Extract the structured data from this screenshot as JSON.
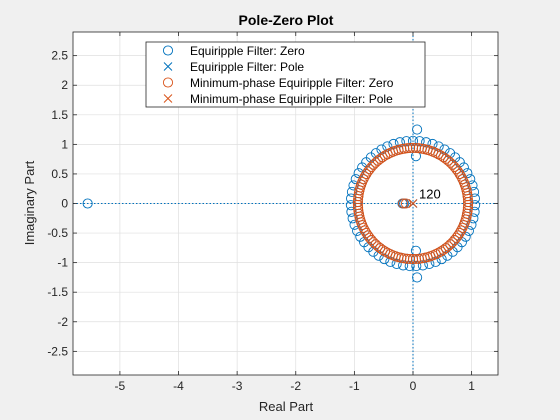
{
  "chart_data": {
    "type": "scatter",
    "title": "Pole-Zero Plot",
    "xlabel": "Real Part",
    "ylabel": "Imaginary Part",
    "xlim": [
      -5.8,
      1.45
    ],
    "ylim": [
      -2.9,
      2.9
    ],
    "xticks": [
      -5,
      -4,
      -3,
      -2,
      -1,
      0,
      1
    ],
    "yticks": [
      -2.5,
      -2,
      -1.5,
      -1,
      -0.5,
      0,
      0.5,
      1,
      1.5,
      2,
      2.5
    ],
    "grid": true,
    "legend_position": "top",
    "annotation": "120",
    "series": [
      {
        "name": "Equiripple Filter: Zero",
        "marker": "circle",
        "color": "#0072BD",
        "points": [
          [
            -5.55,
            0
          ],
          [
            0.07,
            1.25
          ],
          [
            0.07,
            -1.25
          ],
          [
            0.05,
            0.8
          ],
          [
            0.05,
            -0.8
          ],
          [
            -0.18,
            0
          ],
          [
            -0.15,
            0
          ]
        ],
        "ring": {
          "inner_radius": 0.94,
          "outer_radius": 1.06,
          "count": 118
        }
      },
      {
        "name": "Equiripple Filter: Pole",
        "marker": "x",
        "color": "#0072BD",
        "points": [
          [
            0,
            0
          ]
        ],
        "count_label": "120"
      },
      {
        "name": "Minimum-phase Equiripple Filter: Zero",
        "marker": "circle",
        "color": "#D95319",
        "points": [
          [
            -0.17,
            0
          ],
          [
            -0.12,
            0
          ]
        ],
        "ring": {
          "inner_radius": 0.94,
          "outer_radius": 0.94,
          "count": 118
        }
      },
      {
        "name": "Minimum-phase Equiripple Filter: Pole",
        "marker": "x",
        "color": "#D95319",
        "points": [
          [
            0,
            0
          ]
        ]
      }
    ]
  }
}
